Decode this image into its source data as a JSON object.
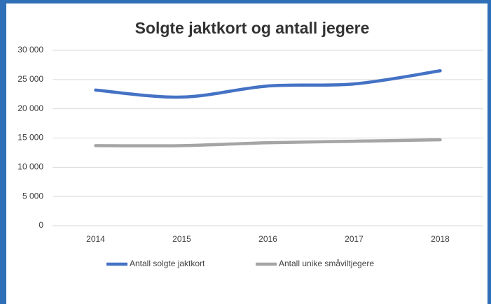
{
  "chart_data": {
    "type": "line",
    "title": "Solgte jaktkort og antall jegere",
    "categories": [
      "2014",
      "2015",
      "2016",
      "2017",
      "2018"
    ],
    "series": [
      {
        "name": "Antall solgte jaktkort",
        "color": "#4472c4",
        "values": [
          23200,
          22000,
          23900,
          24250,
          26500
        ]
      },
      {
        "name": "Antall unike småviltjegere",
        "color": "#a5a5a5",
        "values": [
          13700,
          13700,
          14200,
          14450,
          14700
        ]
      }
    ],
    "ylim": [
      0,
      30000
    ],
    "yticks": [
      0,
      {
        "value": 5000,
        "label": "5 000"
      },
      {
        "value": 10000,
        "label": "10 000"
      },
      {
        "value": 15000,
        "label": "15 000"
      },
      {
        "value": 20000,
        "label": "20 000"
      },
      {
        "value": 25000,
        "label": "25 000"
      },
      {
        "value": 30000,
        "label": "30 000"
      }
    ],
    "grid": true,
    "legend": "bottom"
  }
}
